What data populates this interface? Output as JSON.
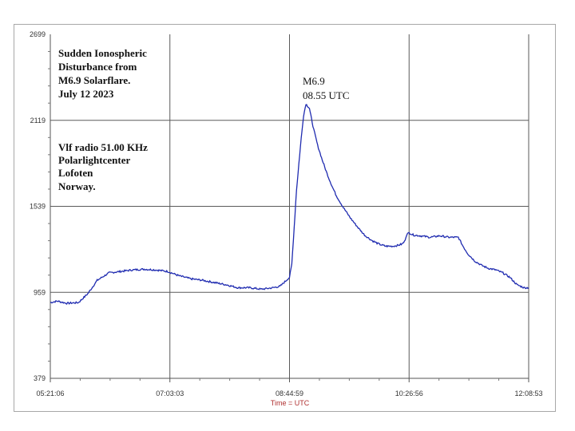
{
  "chart_data": {
    "type": "line",
    "title_lines": [
      "Sudden Ionospheric",
      "Disturbance from",
      "M6.9 Solarflare.",
      "July 12  2023"
    ],
    "info_lines": [
      "Vlf radio 51.00 KHz",
      "Polarlightcenter",
      "Lofoten",
      "Norway."
    ],
    "peak_label": [
      "M6.9",
      "08.55 UTC"
    ],
    "xlabel": "Time = UTC",
    "ylabel": "",
    "x_ticks": [
      "05:21:06",
      "07:03:03",
      "08:44:59",
      "10:26:56",
      "12:08:53"
    ],
    "y_ticks": [
      "2699",
      "2119",
      "1539",
      "959",
      "379"
    ],
    "ylim": [
      379,
      2699
    ],
    "xlim_minutes": [
      0,
      408
    ],
    "grid": true,
    "series": [
      {
        "color": "#1f2bb0",
        "x": [
          0,
          6,
          14,
          24,
          32,
          40,
          50,
          60,
          70,
          80,
          90,
          100,
          110,
          120,
          130,
          140,
          150,
          160,
          170,
          180,
          190,
          196,
          200,
          204,
          206,
          210,
          214,
          216,
          218,
          221,
          224,
          228,
          232,
          236,
          240,
          244,
          250,
          256,
          262,
          268,
          274,
          280,
          286,
          292,
          296,
          300,
          302,
          304,
          306,
          310,
          316,
          324,
          332,
          340,
          348,
          350,
          352,
          356,
          362,
          368,
          374,
          380,
          386,
          392,
          398,
          404,
          408
        ],
        "y": [
          890,
          900,
          885,
          890,
          950,
          1040,
          1090,
          1100,
          1110,
          1115,
          1110,
          1100,
          1070,
          1050,
          1040,
          1025,
          1010,
          990,
          990,
          980,
          990,
          1000,
          1030,
          1060,
          1150,
          1650,
          2000,
          2150,
          2230,
          2200,
          2080,
          1950,
          1850,
          1760,
          1680,
          1610,
          1530,
          1460,
          1400,
          1345,
          1310,
          1285,
          1270,
          1270,
          1275,
          1285,
          1300,
          1350,
          1360,
          1345,
          1340,
          1330,
          1340,
          1330,
          1330,
          1300,
          1270,
          1220,
          1170,
          1140,
          1120,
          1110,
          1090,
          1060,
          1010,
          990,
          990
        ]
      }
    ]
  }
}
